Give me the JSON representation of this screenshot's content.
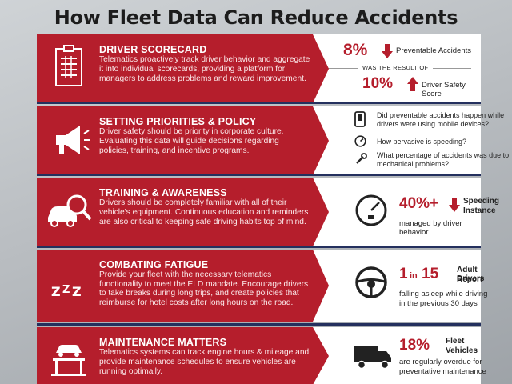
{
  "title": "How Fleet Data Can Reduce Accidents",
  "colors": {
    "accent": "#b51e2c",
    "navy": "#24305e"
  },
  "rows": [
    {
      "icon": "scorecard-clipboard-icon",
      "title": "DRIVER SCORECARD",
      "text": "Telematics proactively track driver behavior and aggregate it into individual scorecards, providing a platform for managers to address problems and reward improvement.",
      "stat1": "8%",
      "stat1_label": "Preventable Accidents",
      "connector": "WAS THE RESULT OF",
      "stat2": "10%",
      "stat2_label": "Driver Safety Score"
    },
    {
      "icon": "megaphone-icon",
      "title": "SETTING PRIORITIES & POLICY",
      "text": "Driver safety should be priority in corporate culture. Evaluating this data will guide decisions regarding policies, training, and incentive programs.",
      "questions": [
        {
          "icon": "mobile-phone-icon",
          "text": "Did preventable accidents happen while drivers were using mobile devices?"
        },
        {
          "icon": "speedometer-icon",
          "text": "How pervasive is speeding?"
        },
        {
          "icon": "wrench-icon",
          "text": "What percentage of accidents was due to mechanical problems?"
        }
      ]
    },
    {
      "icon": "car-magnifier-icon",
      "title": "TRAINING & AWARENESS",
      "text": "Drivers should be completely familiar with all of their vehicle's equipment. Continuous education and reminders are also critical to keeping safe driving habits top of mind.",
      "stat": "40%+",
      "stat_label_1": "Speeding",
      "stat_label_2": "Instance",
      "sub": "managed by driver behavior"
    },
    {
      "icon": "sleep-zzz-icon",
      "title": "COMBATING FATIGUE",
      "text": "Provide your fleet with the necessary telematics functionality to meet the ELD mandate. Encourage drivers to take breaks during long trips, and create policies that reimburse for hotel costs after long hours on the road.",
      "stat_a": "1",
      "stat_in": "in",
      "stat_b": "15",
      "stat_label_1": "Adult Drivers",
      "stat_label_2": "Report",
      "sub": "falling asleep while driving in the previous 30 days"
    },
    {
      "icon": "vehicle-lift-icon",
      "title": "MAINTENANCE MATTERS",
      "text": "Telematics systems can track engine hours & mileage and provide maintenance schedules to ensure vehicles are running optimally.",
      "stat": "18%",
      "stat_label_1": "Fleet",
      "stat_label_2": "Vehicles",
      "sub": "are regularly overdue for preventative maintenance"
    }
  ]
}
